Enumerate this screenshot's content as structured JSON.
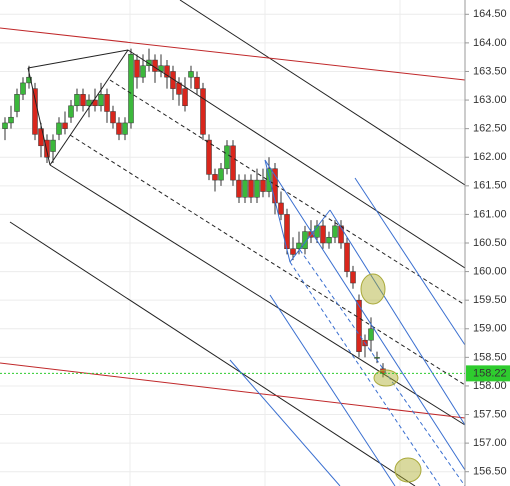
{
  "chart_data": {
    "type": "candlestick",
    "open": [
      162.5,
      162.6,
      162.8,
      163.1,
      163.3,
      163.2,
      162.5,
      162.3,
      162.1,
      162.4,
      162.6,
      162.7,
      162.9,
      163.1,
      162.9,
      163.0,
      162.9,
      163.1,
      162.8,
      162.6,
      162.4,
      162.6,
      163.7,
      163.4,
      163.6,
      163.7,
      163.5,
      163.6,
      163.5,
      163.3,
      163.2,
      163.4,
      163.4,
      163.2,
      162.3,
      161.7,
      161.6,
      161.8,
      162.2,
      161.6,
      161.3,
      161.6,
      161.3,
      161.6,
      161.4,
      161.8,
      161.2,
      161.0,
      160.4,
      160.4,
      160.4,
      160.7,
      160.6,
      160.8,
      160.5,
      160.6,
      160.8,
      160.5,
      160.0,
      159.5,
      158.8,
      158.8,
      158.5,
      158.3
    ],
    "high": [
      162.7,
      162.9,
      163.2,
      163.4,
      163.6,
      163.3,
      162.6,
      162.4,
      162.4,
      162.7,
      162.8,
      163.0,
      163.2,
      163.2,
      163.1,
      163.2,
      163.3,
      163.2,
      162.9,
      162.7,
      162.7,
      163.9,
      163.8,
      163.8,
      163.9,
      163.8,
      163.8,
      163.7,
      163.6,
      163.4,
      163.4,
      163.6,
      163.5,
      163.3,
      162.4,
      161.8,
      161.9,
      162.3,
      162.3,
      161.7,
      161.7,
      161.7,
      161.8,
      161.8,
      162.0,
      161.9,
      161.4,
      161.1,
      160.6,
      160.7,
      160.8,
      160.9,
      160.9,
      160.9,
      160.7,
      160.9,
      160.9,
      160.6,
      160.1,
      159.6,
      158.9,
      159.2,
      158.6,
      158.4
    ],
    "low": [
      162.3,
      162.5,
      162.7,
      163.0,
      163.2,
      162.3,
      162.0,
      161.9,
      161.9,
      162.3,
      162.4,
      162.6,
      162.8,
      162.8,
      162.7,
      162.8,
      162.8,
      162.6,
      162.5,
      162.3,
      162.3,
      162.5,
      163.2,
      163.3,
      163.5,
      163.3,
      163.4,
      163.2,
      163.0,
      162.9,
      162.8,
      163.2,
      163.1,
      162.3,
      161.6,
      161.4,
      161.5,
      161.7,
      161.5,
      161.2,
      161.2,
      161.2,
      161.2,
      161.3,
      161.3,
      161.0,
      160.9,
      160.3,
      160.2,
      160.3,
      160.3,
      160.5,
      160.5,
      160.4,
      160.4,
      160.5,
      160.4,
      159.9,
      159.7,
      158.5,
      158.5,
      158.6,
      158.4,
      158.15
    ],
    "close": [
      162.6,
      162.7,
      163.1,
      163.3,
      163.4,
      162.4,
      162.2,
      162.0,
      162.3,
      162.6,
      162.5,
      162.9,
      163.1,
      162.9,
      163.0,
      162.9,
      163.1,
      162.8,
      162.6,
      162.4,
      162.6,
      163.8,
      163.4,
      163.6,
      163.7,
      163.5,
      163.6,
      163.4,
      163.2,
      163.1,
      162.9,
      163.5,
      163.2,
      162.4,
      161.7,
      161.6,
      161.8,
      162.2,
      161.6,
      161.3,
      161.6,
      161.3,
      161.6,
      161.4,
      161.8,
      161.2,
      161.0,
      160.4,
      160.3,
      160.5,
      160.7,
      160.6,
      160.8,
      160.5,
      160.6,
      160.8,
      160.5,
      160.0,
      159.8,
      158.6,
      158.7,
      159.0,
      158.5,
      158.22
    ],
    "up_color": "#3cb83c",
    "down_color": "#d9261c",
    "last_price": 158.22,
    "last_price_color": "#2ecc2e",
    "ylim": [
      156.25,
      164.75
    ],
    "yticks": [
      {
        "value": 156.5,
        "label": "156.50"
      },
      {
        "value": 157,
        "label": "157.00"
      },
      {
        "value": 157.5,
        "label": "157.50"
      },
      {
        "value": 158,
        "label": "158.00"
      },
      {
        "value": 158.5,
        "label": "158.50"
      },
      {
        "value": 159,
        "label": "159.00"
      },
      {
        "value": 159.5,
        "label": "159.50"
      },
      {
        "value": 160,
        "label": "160.00"
      },
      {
        "value": 160.5,
        "label": "160.50"
      },
      {
        "value": 161,
        "label": "161.00"
      },
      {
        "value": 161.5,
        "label": "161.50"
      },
      {
        "value": 162,
        "label": "162.00"
      },
      {
        "value": 162.5,
        "label": "162.50"
      },
      {
        "value": 163,
        "label": "163.00"
      },
      {
        "value": 163.5,
        "label": "163.50"
      },
      {
        "value": 164,
        "label": "164.00"
      },
      {
        "value": 164.5,
        "label": "164.50"
      }
    ],
    "grid": true
  }
}
